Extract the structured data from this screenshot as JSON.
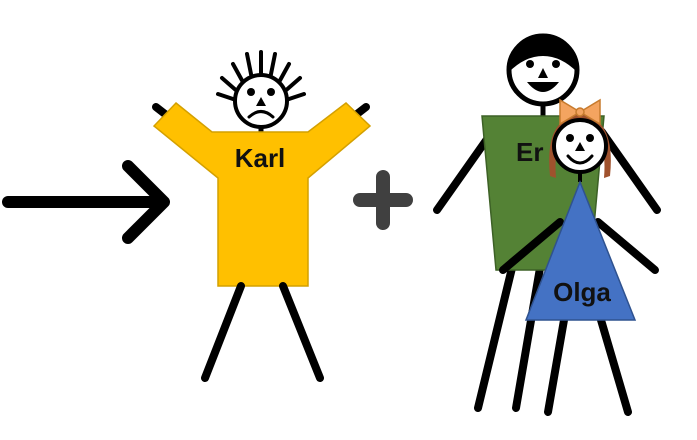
{
  "figures": {
    "karl": {
      "label": "Karl",
      "shirt_color": "#FFC000",
      "expression": "sad"
    },
    "eric": {
      "label": "Er",
      "shirt_color": "#548235",
      "expression": "happy"
    },
    "olga": {
      "label": "Olga",
      "dress_color": "#4472C4",
      "hair_color": "#A0522D",
      "bow_color": "#F4A460",
      "expression": "happy"
    }
  },
  "symbols": {
    "arrow": {
      "icon": "arrow-right-icon",
      "color": "#000000"
    },
    "plus": {
      "icon": "plus-icon",
      "color": "#404040"
    }
  }
}
